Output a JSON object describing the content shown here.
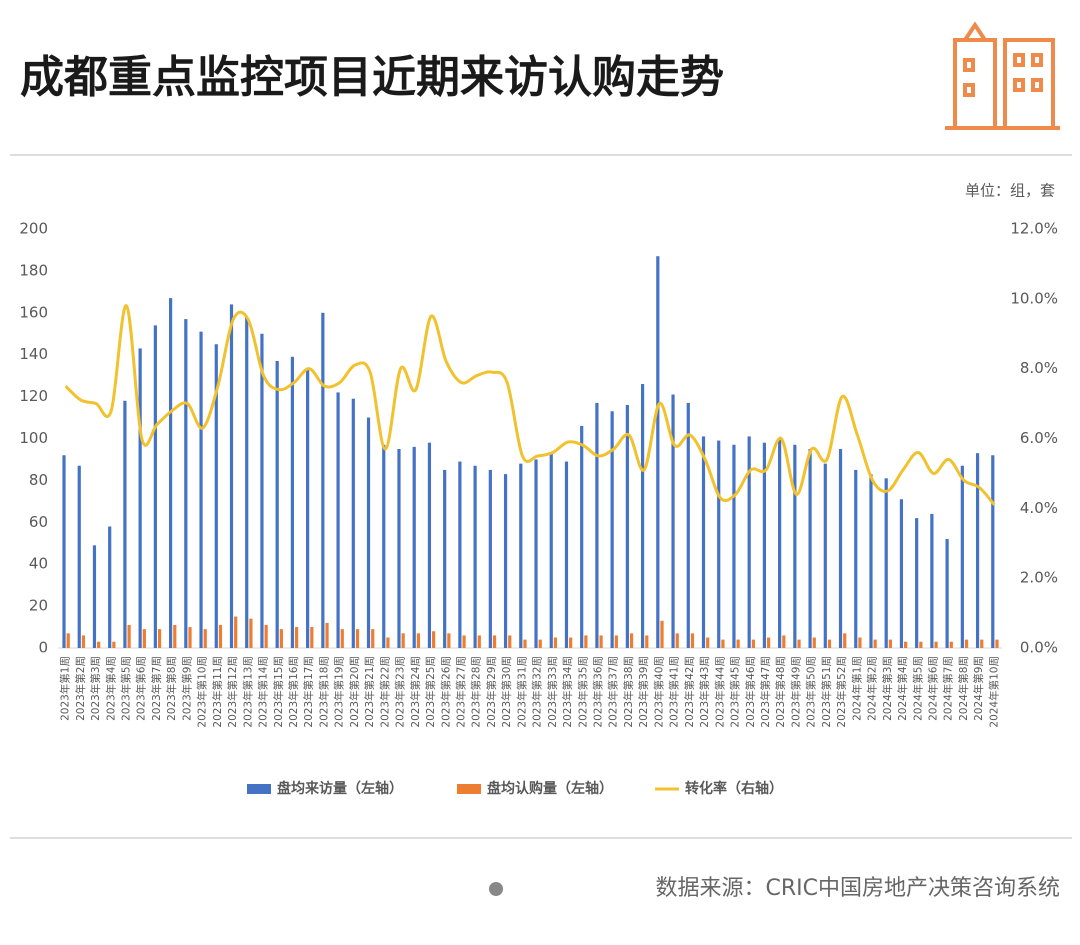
{
  "title": "成都重点监控项目近期来访认购走势",
  "unit": "单位：组，套",
  "source": "数据来源：CRIC中国房地产决策咨询系统",
  "chart_data": {
    "type": "bar",
    "categories": [
      "2023年第1周",
      "2023年第2周",
      "2023年第3周",
      "2023年第4周",
      "2023年第5周",
      "2023年第6周",
      "2023年第7周",
      "2023年第8周",
      "2023年第9周",
      "2023年第10周",
      "2023年第11周",
      "2023年第12周",
      "2023年第13周",
      "2023年第14周",
      "2023年第15周",
      "2023年第16周",
      "2023年第17周",
      "2023年第18周",
      "2023年第19周",
      "2023年第20周",
      "2023年第21周",
      "2023年第22周",
      "2023年第23周",
      "2023年第24周",
      "2023年第25周",
      "2023年第26周",
      "2023年第27周",
      "2023年第28周",
      "2023年第29周",
      "2023年第30周",
      "2023年第31周",
      "2023年第32周",
      "2023年第33周",
      "2023年第34周",
      "2023年第35周",
      "2023年第36周",
      "2023年第37周",
      "2023年第38周",
      "2023年第39周",
      "2023年第40周",
      "2023年第41周",
      "2023年第42周",
      "2023年第43周",
      "2023年第44周",
      "2023年第45周",
      "2023年第46周",
      "2023年第47周",
      "2023年第48周",
      "2023年第49周",
      "2023年第50周",
      "2023年第51周",
      "2023年第52周",
      "2024年第1周",
      "2024年第2周",
      "2024年第3周",
      "2024年第4周",
      "2024年第5周",
      "2024年第6周",
      "2024年第7周",
      "2024年第8周",
      "2024年第9周",
      "2024年第10周"
    ],
    "series": [
      {
        "name": "盘均来访量（左轴）",
        "color": "#4472c4",
        "values": [
          92,
          87,
          49,
          58,
          118,
          143,
          154,
          167,
          157,
          151,
          145,
          164,
          158,
          150,
          137,
          139,
          133,
          160,
          122,
          119,
          110,
          97,
          95,
          96,
          98,
          85,
          89,
          87,
          85,
          83,
          88,
          90,
          93,
          89,
          106,
          117,
          113,
          116,
          126,
          187,
          121,
          117,
          101,
          99,
          97,
          101,
          98,
          100,
          97,
          95,
          88,
          95,
          85,
          83,
          81,
          71,
          62,
          64,
          52,
          87,
          93,
          92
        ]
      },
      {
        "name": "盘均认购量（左轴）",
        "color": "#ed7d31",
        "values": [
          7,
          6,
          3,
          3,
          11,
          9,
          9,
          11,
          10,
          9,
          11,
          15,
          14,
          11,
          9,
          10,
          10,
          12,
          9,
          9,
          9,
          5,
          7,
          7,
          8,
          7,
          6,
          6,
          6,
          6,
          4,
          4,
          5,
          5,
          6,
          6,
          6,
          7,
          6,
          13,
          7,
          7,
          5,
          4,
          4,
          4,
          5,
          6,
          4,
          5,
          4,
          7,
          5,
          4,
          4,
          3,
          3,
          3,
          3,
          4,
          4,
          4
        ]
      },
      {
        "name": "转化率（右轴）",
        "color": "#f2c12e",
        "type": "line",
        "axis": "y2",
        "values": [
          7.5,
          7.1,
          7.0,
          6.8,
          9.8,
          6.0,
          6.4,
          6.8,
          7.0,
          6.3,
          7.5,
          9.4,
          9.4,
          7.8,
          7.4,
          7.6,
          8.0,
          7.5,
          7.6,
          8.1,
          7.9,
          5.7,
          8.0,
          7.4,
          9.5,
          8.2,
          7.6,
          7.8,
          7.9,
          7.6,
          5.5,
          5.5,
          5.6,
          5.9,
          5.8,
          5.5,
          5.7,
          6.1,
          5.1,
          7.0,
          5.8,
          6.1,
          5.4,
          4.3,
          4.4,
          5.1,
          5.1,
          6.0,
          4.4,
          5.7,
          5.4,
          7.2,
          6.1,
          4.8,
          4.5,
          5.1,
          5.6,
          5.0,
          5.4,
          4.8,
          4.6,
          4.1
        ]
      }
    ],
    "ylim": [
      0,
      200
    ],
    "yticks": [
      0,
      20,
      40,
      60,
      80,
      100,
      120,
      140,
      160,
      180,
      200
    ],
    "y2lim": [
      0,
      12
    ],
    "y2ticks": [
      {
        "value": 0,
        "label": "0.0%"
      },
      {
        "value": 2,
        "label": "2.0%"
      },
      {
        "value": 4,
        "label": "4.0%"
      },
      {
        "value": 6,
        "label": "6.0%"
      },
      {
        "value": 8,
        "label": "8.0%"
      },
      {
        "value": 10,
        "label": "10.0%"
      },
      {
        "value": 12,
        "label": "12.0%"
      }
    ],
    "grid": false,
    "legend": "bottom"
  }
}
